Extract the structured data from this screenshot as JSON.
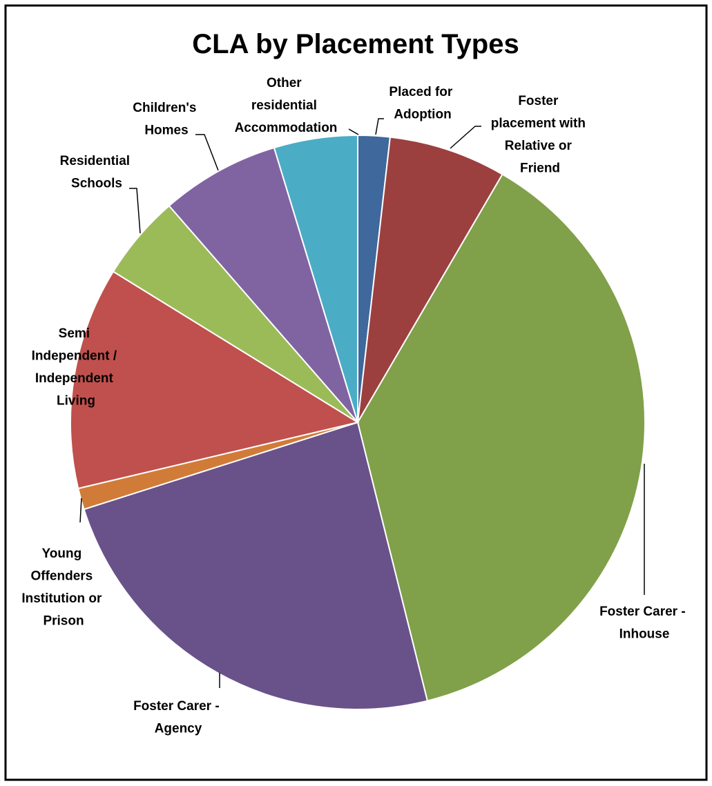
{
  "chart_data": {
    "type": "pie",
    "title": "CLA by Placement Types",
    "categories": [
      "Placed for Adoption",
      "Foster placement with Relative or Friend",
      "Foster Carer - Inhouse",
      "Foster Carer - Agency",
      "Young Offenders Institution or Prison",
      "Semi Independent / Independent Living",
      "Residential Schools",
      "Children's Homes",
      "Other residential Accommodation"
    ],
    "values": [
      1.8,
      6.6,
      37.7,
      24.0,
      1.2,
      12.5,
      4.8,
      6.7,
      4.7
    ],
    "colors": [
      "#3f689c",
      "#9c403f",
      "#80a04a",
      "#69528a",
      "#d07c38",
      "#c0504d",
      "#9bbb59",
      "#8064a2",
      "#4bacc6"
    ]
  }
}
